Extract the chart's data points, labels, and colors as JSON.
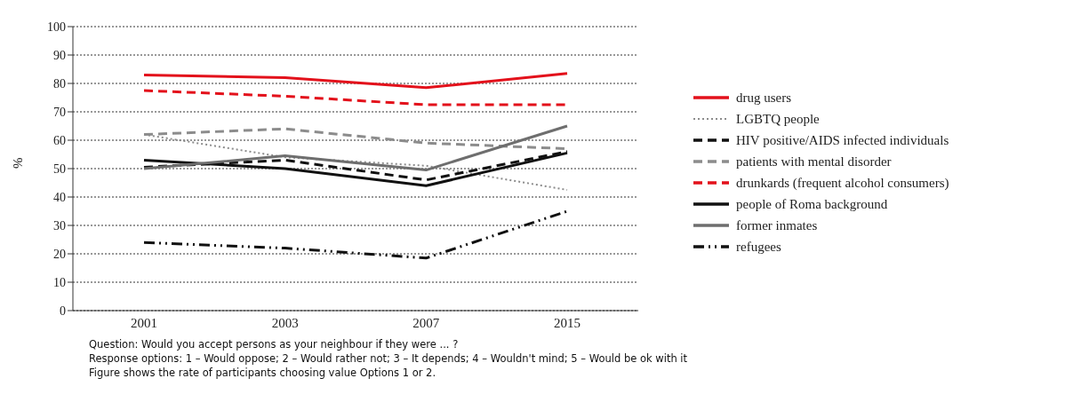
{
  "chart_data": {
    "type": "line",
    "ylabel": "%",
    "categories": [
      "2001",
      "2003",
      "2007",
      "2015"
    ],
    "ylim": [
      0,
      100
    ],
    "yticks": [
      0,
      10,
      20,
      30,
      40,
      50,
      60,
      70,
      80,
      90,
      100
    ],
    "grid": "y",
    "legend": "right",
    "marker": "none",
    "series": [
      {
        "name": "drug users",
        "color": "#e3111b",
        "line_style": "solid",
        "values": [
          83,
          82,
          78.5,
          83.5
        ]
      },
      {
        "name": "LGBTQ people",
        "color": "#8c8c8c",
        "line_style": "dotted",
        "values": [
          62,
          54,
          51,
          42.5
        ]
      },
      {
        "name": "HIV positive/AIDS infected individuals",
        "color": "#111111",
        "line_style": "dashed",
        "values": [
          50.5,
          53,
          46,
          56
        ]
      },
      {
        "name": "patients with mental disorder",
        "color": "#8c8c8c",
        "line_style": "dashed",
        "values": [
          62,
          64,
          59,
          57
        ]
      },
      {
        "name": "drunkards (frequent alcohol consumers)",
        "color": "#e3111b",
        "line_style": "dashed",
        "values": [
          77.5,
          75.5,
          72.5,
          72.5
        ]
      },
      {
        "name": "people of Roma background",
        "color": "#111111",
        "line_style": "solid",
        "values": [
          53,
          50,
          44,
          55.5
        ]
      },
      {
        "name": "former inmates",
        "color": "#6e6e6e",
        "line_style": "solid",
        "values": [
          50,
          54.5,
          49.5,
          65
        ]
      },
      {
        "name": "refugees",
        "color": "#111111",
        "line_style": "dashdot",
        "values": [
          24,
          22,
          18.5,
          35
        ]
      }
    ],
    "annotations": [
      "Question: Would you accept persons as your neighbour if they were ... ?",
      "Response options: 1 – Would oppose; 2 – Would rather not; 3 – It depends; 4 – Wouldn't mind; 5 – Would be ok with it",
      "Figure shows the rate of participants choosing value Options 1 or 2."
    ]
  }
}
